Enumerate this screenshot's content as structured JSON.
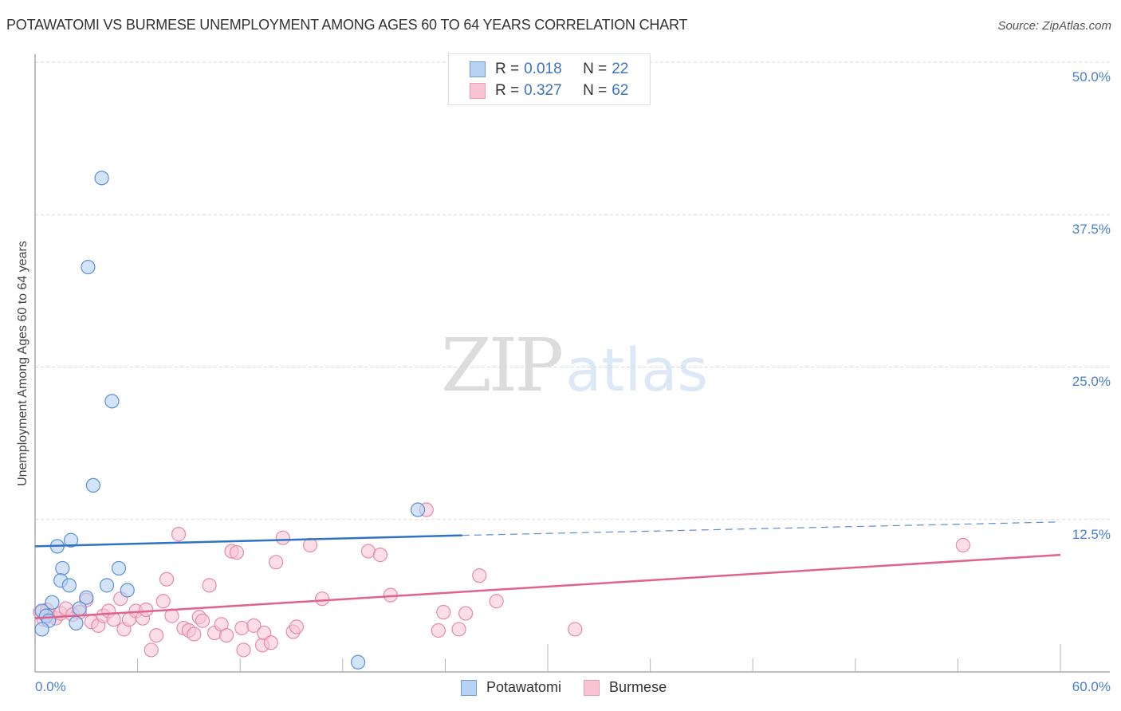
{
  "header": {
    "title": "POTAWATOMI VS BURMESE UNEMPLOYMENT AMONG AGES 60 TO 64 YEARS CORRELATION CHART",
    "source": "Source: ZipAtlas.com"
  },
  "legend": {
    "rows": [
      {
        "series": "Potawatomi",
        "r_label": "R =",
        "r_value": "0.018",
        "n_label": "N =",
        "n_value": "22"
      },
      {
        "series": "Burmese",
        "r_label": "R =",
        "r_value": "0.327",
        "n_label": "N =",
        "n_value": "62"
      }
    ]
  },
  "bottom_legend": {
    "items": [
      {
        "label": "Potawatomi"
      },
      {
        "label": "Burmese"
      }
    ]
  },
  "axes": {
    "y_label": "Unemployment Among Ages 60 to 64 years",
    "y_ticks": [
      "50.0%",
      "37.5%",
      "25.0%",
      "12.5%"
    ],
    "x_min_label": "0.0%",
    "x_max_label": "60.0%"
  },
  "watermark": {
    "zip": "ZIP",
    "atlas": "atlas"
  },
  "colors": {
    "potawatomi_fill": "#b8d2f3",
    "potawatomi_stroke": "#5b8fd9",
    "potawatomi_line": "#2f72c8",
    "burmese_fill": "#f8c3d3",
    "burmese_stroke": "#e68aa8",
    "burmese_line": "#e0628e",
    "tick_label": "#4a7fd0",
    "grid": "#d9d9d9"
  },
  "chart_data": {
    "type": "scatter",
    "title": "POTAWATOMI VS BURMESE UNEMPLOYMENT AMONG AGES 60 TO 64 YEARS CORRELATION CHART",
    "xlabel": "",
    "ylabel": "Unemployment Among Ages 60 to 64 years",
    "xlim": [
      0,
      60
    ],
    "ylim": [
      0,
      50
    ],
    "x_tick_labels": [
      "0.0%",
      "60.0%"
    ],
    "y_tick_labels": [
      "12.5%",
      "25.0%",
      "37.5%",
      "50.0%"
    ],
    "y_ticks": [
      12.5,
      25.0,
      37.5,
      50.0
    ],
    "grid": true,
    "legend_position": "top-center",
    "series": [
      {
        "name": "Potawatomi",
        "R": 0.018,
        "N": 22,
        "trend": {
          "x0": 0,
          "y0": 10.3,
          "x1": 25,
          "y1": 11.2,
          "dashed_to_x": 60,
          "dashed_to_y": 12.3
        },
        "points": [
          [
            3.9,
            40.5
          ],
          [
            3.1,
            33.2
          ],
          [
            4.5,
            22.2
          ],
          [
            3.4,
            15.3
          ],
          [
            2.1,
            10.8
          ],
          [
            1.3,
            10.3
          ],
          [
            1.6,
            8.5
          ],
          [
            4.9,
            8.5
          ],
          [
            1.5,
            7.5
          ],
          [
            2.0,
            7.1
          ],
          [
            4.2,
            7.1
          ],
          [
            5.4,
            6.7
          ],
          [
            1.0,
            5.7
          ],
          [
            3.0,
            6.1
          ],
          [
            0.4,
            5.0
          ],
          [
            0.65,
            4.6
          ],
          [
            2.6,
            5.2
          ],
          [
            0.8,
            4.2
          ],
          [
            2.4,
            4.0
          ],
          [
            0.4,
            3.5
          ],
          [
            22.4,
            13.3
          ],
          [
            18.9,
            0.8
          ]
        ]
      },
      {
        "name": "Burmese",
        "R": 0.327,
        "N": 62,
        "trend": {
          "x0": 0,
          "y0": 4.4,
          "x1": 60,
          "y1": 9.6
        },
        "points": [
          [
            0.3,
            4.9
          ],
          [
            0.5,
            4.3
          ],
          [
            0.7,
            5.1
          ],
          [
            0.9,
            4.6
          ],
          [
            1.2,
            4.4
          ],
          [
            1.5,
            4.8
          ],
          [
            1.8,
            5.2
          ],
          [
            2.2,
            4.7
          ],
          [
            2.6,
            4.9
          ],
          [
            3.0,
            5.9
          ],
          [
            3.3,
            4.1
          ],
          [
            3.7,
            3.8
          ],
          [
            4.0,
            4.6
          ],
          [
            4.3,
            5.0
          ],
          [
            4.6,
            4.3
          ],
          [
            5.0,
            6.0
          ],
          [
            5.2,
            3.5
          ],
          [
            5.5,
            4.3
          ],
          [
            5.9,
            5.0
          ],
          [
            6.3,
            4.4
          ],
          [
            6.5,
            5.1
          ],
          [
            6.8,
            1.8
          ],
          [
            7.1,
            3.0
          ],
          [
            7.5,
            5.8
          ],
          [
            7.7,
            7.6
          ],
          [
            8.0,
            4.6
          ],
          [
            8.4,
            11.3
          ],
          [
            8.7,
            3.6
          ],
          [
            9.0,
            3.4
          ],
          [
            9.3,
            3.1
          ],
          [
            9.6,
            4.5
          ],
          [
            9.8,
            4.2
          ],
          [
            10.2,
            7.1
          ],
          [
            10.5,
            3.2
          ],
          [
            10.9,
            3.9
          ],
          [
            11.2,
            3.0
          ],
          [
            11.5,
            9.9
          ],
          [
            11.8,
            9.8
          ],
          [
            12.1,
            3.6
          ],
          [
            12.2,
            1.8
          ],
          [
            12.8,
            3.8
          ],
          [
            13.3,
            2.2
          ],
          [
            13.4,
            3.2
          ],
          [
            13.8,
            2.4
          ],
          [
            14.1,
            9.0
          ],
          [
            14.5,
            11.0
          ],
          [
            15.1,
            3.3
          ],
          [
            15.3,
            3.7
          ],
          [
            16.1,
            10.4
          ],
          [
            16.8,
            6.0
          ],
          [
            19.5,
            9.9
          ],
          [
            20.2,
            9.6
          ],
          [
            20.8,
            6.3
          ],
          [
            23.6,
            3.4
          ],
          [
            23.9,
            4.9
          ],
          [
            24.8,
            3.5
          ],
          [
            25.2,
            4.8
          ],
          [
            26.0,
            7.9
          ],
          [
            27.0,
            5.8
          ],
          [
            22.9,
            13.3
          ],
          [
            31.6,
            3.5
          ],
          [
            54.3,
            10.4
          ]
        ]
      }
    ]
  }
}
